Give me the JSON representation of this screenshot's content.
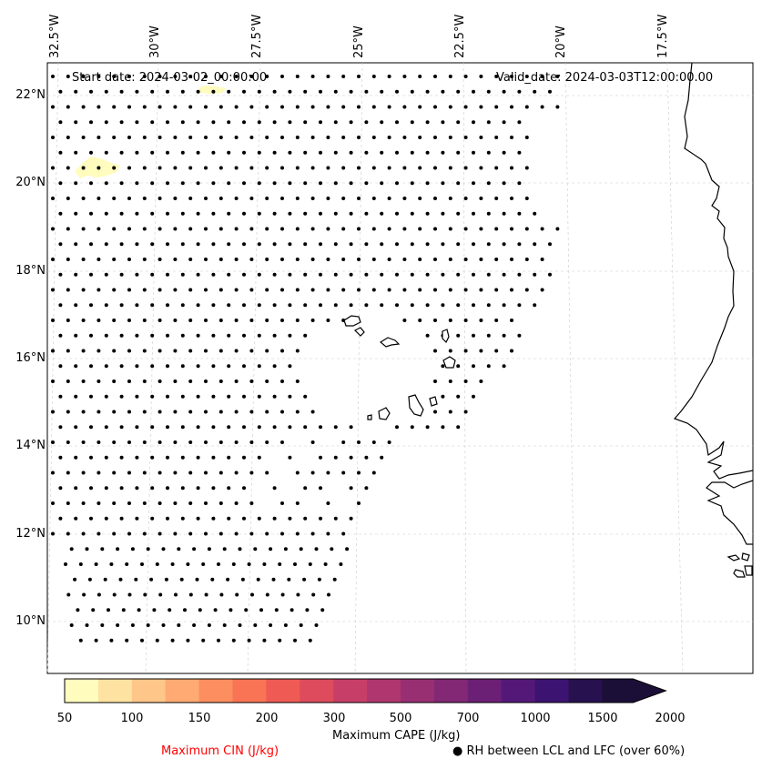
{
  "header": {
    "start_date": "Start date: 2024-03-02_00:00:00",
    "valid_date": "Valid_date: 2024-03-03T12:00:00.00"
  },
  "map": {
    "lon_labels": [
      "32.5°W",
      "30°W",
      "27.5°W",
      "25°W",
      "22.5°W",
      "20°W",
      "17.5°W"
    ],
    "lat_labels": [
      "22°N",
      "20°N",
      "18°N",
      "16°N",
      "14°N",
      "12°N",
      "10°N"
    ],
    "coastline_color": "#000000",
    "gridline_color": "#cccccc"
  },
  "colorbar": {
    "label": "Maximum CAPE (J/kg)",
    "ticks": [
      "50",
      "100",
      "150",
      "200",
      "300",
      "500",
      "700",
      "1000",
      "1500",
      "2000"
    ],
    "colors": [
      "#fffcbe",
      "#fee2a2",
      "#fec689",
      "#feaa72",
      "#fd8e5f",
      "#f87454",
      "#ef5b54",
      "#dd4b5c",
      "#c73f68",
      "#b0366f",
      "#982f72",
      "#822874",
      "#6b2075",
      "#541978",
      "#3c1370",
      "#28114f",
      "#1b0f38"
    ]
  },
  "legend": {
    "cin_label": "Maximum CIN (J/kg)",
    "cin_color": "#ff0000",
    "rh_label": "RH between LCL and LFC (over 60%)",
    "rh_marker": "●"
  }
}
